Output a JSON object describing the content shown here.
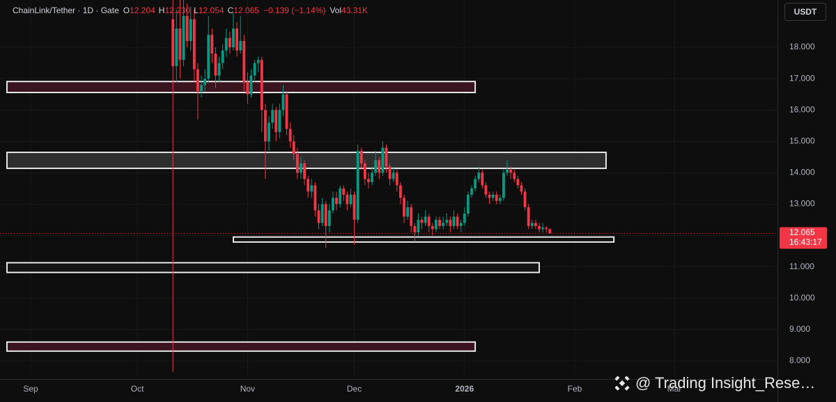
{
  "chart_data": {
    "type": "candlestick",
    "header": [
      {
        "text": "ChainLink/Tether · 1D · Gate",
        "color": "#d1d4dc"
      },
      {
        "text": "O",
        "color": "#d1d4dc"
      },
      {
        "text": "12.204",
        "color": "#f23645"
      },
      {
        "text": "H",
        "color": "#d1d4dc"
      },
      {
        "text": "12.230",
        "color": "#f23645"
      },
      {
        "text": "L",
        "color": "#d1d4dc"
      },
      {
        "text": "12.054",
        "color": "#f23645"
      },
      {
        "text": "C",
        "color": "#d1d4dc"
      },
      {
        "text": "12.065",
        "color": "#f23645"
      },
      {
        "text": "−0.139 (−1.14%)",
        "color": "#f23645"
      },
      {
        "text": "Vol",
        "color": "#d1d4dc"
      },
      {
        "text": "43.31K",
        "color": "#f23645"
      }
    ],
    "currency": "USDT",
    "countdown": "16:43:17",
    "watermark": "@ Trading Insight_Rese…",
    "up_color": "#089981",
    "down_color": "#f23645",
    "grid": true,
    "xlim": [
      -8.62,
      210.0
    ],
    "ylim": [
      7.53,
      19.51
    ],
    "xticks": [
      {
        "value": 0,
        "label": "Sep"
      },
      {
        "value": 30,
        "label": "Oct"
      },
      {
        "value": 61,
        "label": "Nov"
      },
      {
        "value": 91,
        "label": "Dec"
      },
      {
        "value": 122,
        "label": "2026"
      },
      {
        "value": 153,
        "label": "Feb"
      },
      {
        "value": 181,
        "label": "Mar"
      }
    ],
    "yticks": [
      {
        "value": 8,
        "label": "8.000"
      },
      {
        "value": 9,
        "label": "9.000"
      },
      {
        "value": 10,
        "label": "10.000"
      },
      {
        "value": 11,
        "label": "11.000"
      },
      {
        "value": 12,
        "label": "12.000"
      },
      {
        "value": 13,
        "label": "13.000"
      },
      {
        "value": 14,
        "label": "14.000"
      },
      {
        "value": 15,
        "label": "15.000"
      },
      {
        "value": 16,
        "label": "16.000"
      },
      {
        "value": 17,
        "label": "17.000"
      },
      {
        "value": 18,
        "label": "18.000"
      }
    ],
    "zones": [
      {
        "x": [
          -6.66,
          125
        ],
        "y": [
          16.56,
          16.91
        ],
        "color": "#3a1520"
      },
      {
        "x": [
          -6.66,
          161.8
        ],
        "y": [
          14.14,
          14.65
        ],
        "color": "#2e2e2e"
      },
      {
        "x": [
          57.0,
          164.0
        ],
        "y": [
          11.79,
          11.95
        ],
        "color": "#141414"
      },
      {
        "x": [
          -6.66,
          143.0
        ],
        "y": [
          10.82,
          11.13
        ],
        "color": "#141414"
      },
      {
        "x": [
          -6.66,
          125
        ],
        "y": [
          8.31,
          8.6
        ],
        "color": "#3a1520"
      }
    ],
    "x": [
      40,
      41,
      42,
      43,
      44,
      45,
      46,
      47,
      48,
      49,
      50,
      51,
      52,
      53,
      54,
      55,
      56,
      57,
      58,
      59,
      60,
      61,
      62,
      63,
      64,
      65,
      66,
      67,
      68,
      69,
      70,
      71,
      72,
      73,
      74,
      75,
      76,
      77,
      78,
      79,
      80,
      81,
      82,
      83,
      84,
      85,
      86,
      87,
      88,
      89,
      90,
      91,
      92,
      93,
      94,
      95,
      96,
      97,
      98,
      99,
      100,
      101,
      102,
      103,
      104,
      105,
      106,
      107,
      108,
      109,
      110,
      111,
      112,
      113,
      114,
      115,
      116,
      117,
      118,
      119,
      120,
      121,
      122,
      123,
      124,
      125,
      126,
      127,
      128,
      129,
      130,
      131,
      132,
      133,
      134,
      135,
      136,
      137,
      138,
      139,
      140,
      141,
      142,
      143,
      144,
      145,
      146
    ],
    "open": [
      18.9,
      17.4,
      18.6,
      17.6,
      19.0,
      18.2,
      18.9,
      17.3,
      16.6,
      16.8,
      17.0,
      18.4,
      17.8,
      17.1,
      17.5,
      17.9,
      18.3,
      18.0,
      18.6,
      17.9,
      18.2,
      16.9,
      16.5,
      17.1,
      17.5,
      17.6,
      16.0,
      15.0,
      15.6,
      16.0,
      15.3,
      16.0,
      16.5,
      15.4,
      15.0,
      14.6,
      14.0,
      14.3,
      13.8,
      13.4,
      13.6,
      12.8,
      12.4,
      13.0,
      12.3,
      12.8,
      13.2,
      13.0,
      13.5,
      13.3,
      13.0,
      13.3,
      12.5,
      14.7,
      14.3,
      13.8,
      13.7,
      14.0,
      14.4,
      14.0,
      14.8,
      14.2,
      13.8,
      14.0,
      13.6,
      13.2,
      12.6,
      12.9,
      12.3,
      12.1,
      12.5,
      12.4,
      12.6,
      12.3,
      12.2,
      12.5,
      12.3,
      12.4,
      12.5,
      12.3,
      12.6,
      12.3,
      12.4,
      12.7,
      13.3,
      13.5,
      13.8,
      14.0,
      13.6,
      13.3,
      13.2,
      13.3,
      13.1,
      13.2,
      14.0,
      14.1,
      14.0,
      13.8,
      13.6,
      13.4,
      12.9,
      12.3,
      12.4,
      12.3,
      12.2,
      12.25,
      12.204
    ],
    "high": [
      19.6,
      19.2,
      19.7,
      19.8,
      19.4,
      19.3,
      19.2,
      17.5,
      17.1,
      17.3,
      19.0,
      18.6,
      18.0,
      17.7,
      18.1,
      18.6,
      18.5,
      19.1,
      18.8,
      19.0,
      18.4,
      17.2,
      17.3,
      17.6,
      17.7,
      17.7,
      16.2,
      15.8,
      16.2,
      16.1,
      16.2,
      16.8,
      16.6,
      15.6,
      15.2,
      14.8,
      14.5,
      14.4,
      13.9,
      13.8,
      13.7,
      13.0,
      13.2,
      13.1,
      13.0,
      13.4,
      13.4,
      13.6,
      13.6,
      13.4,
      13.5,
      13.4,
      14.9,
      14.8,
      14.4,
      14.0,
      14.2,
      14.7,
      14.5,
      15.0,
      14.9,
      14.3,
      14.2,
      14.1,
      13.7,
      13.3,
      13.1,
      13.0,
      12.4,
      12.7,
      12.6,
      12.8,
      12.7,
      12.4,
      12.6,
      12.6,
      12.6,
      12.7,
      12.6,
      12.8,
      12.7,
      12.5,
      12.9,
      13.4,
      13.6,
      13.9,
      14.2,
      14.1,
      13.7,
      13.4,
      13.4,
      13.4,
      13.3,
      14.1,
      14.4,
      14.2,
      14.1,
      13.9,
      13.7,
      13.5,
      13.0,
      12.5,
      12.5,
      12.4,
      12.4,
      12.3,
      12.23
    ],
    "low": [
      7.65,
      16.9,
      17.0,
      17.4,
      18.0,
      17.9,
      16.9,
      15.7,
      16.4,
      16.6,
      16.9,
      17.5,
      16.7,
      16.9,
      17.3,
      17.7,
      17.8,
      17.9,
      17.7,
      17.8,
      16.6,
      16.2,
      16.4,
      16.9,
      17.2,
      15.3,
      13.8,
      14.7,
      15.4,
      15.0,
      15.1,
      15.8,
      15.2,
      14.8,
      14.4,
      13.8,
      13.8,
      13.6,
      13.2,
      13.2,
      12.6,
      12.2,
      12.3,
      11.6,
      12.1,
      12.7,
      12.8,
      12.9,
      13.1,
      12.8,
      12.9,
      11.7,
      12.4,
      14.1,
      13.6,
      13.5,
      13.6,
      13.9,
      13.8,
      13.9,
      14.0,
      13.6,
      13.7,
      13.4,
      13.0,
      12.4,
      12.5,
      12.1,
      11.8,
      12.0,
      12.2,
      12.3,
      12.1,
      12.0,
      12.1,
      12.2,
      12.2,
      12.3,
      12.1,
      12.2,
      12.2,
      12.1,
      12.3,
      12.6,
      13.2,
      13.4,
      13.7,
      13.5,
      13.2,
      13.0,
      13.1,
      13.0,
      13.0,
      13.1,
      13.9,
      13.8,
      13.7,
      13.5,
      13.3,
      12.8,
      12.2,
      12.2,
      12.2,
      12.1,
      12.1,
      12.1,
      12.054
    ],
    "close": [
      17.4,
      18.6,
      17.6,
      19.0,
      18.2,
      18.9,
      17.3,
      16.6,
      16.8,
      17.0,
      18.4,
      17.8,
      17.1,
      17.5,
      17.9,
      18.3,
      18.0,
      18.6,
      17.9,
      18.2,
      16.9,
      16.5,
      17.1,
      17.5,
      17.6,
      16.0,
      15.0,
      15.6,
      16.0,
      15.3,
      16.0,
      16.5,
      15.4,
      15.0,
      14.6,
      14.0,
      14.3,
      13.8,
      13.4,
      13.6,
      12.8,
      12.4,
      13.0,
      12.3,
      12.8,
      13.2,
      13.0,
      13.5,
      13.3,
      13.0,
      13.3,
      12.5,
      14.7,
      14.3,
      13.8,
      13.7,
      14.0,
      14.4,
      14.0,
      14.8,
      14.2,
      13.8,
      14.0,
      13.6,
      13.2,
      12.6,
      12.9,
      12.3,
      12.1,
      12.5,
      12.4,
      12.6,
      12.3,
      12.2,
      12.5,
      12.3,
      12.4,
      12.5,
      12.3,
      12.6,
      12.3,
      12.4,
      12.7,
      13.3,
      13.5,
      13.8,
      14.0,
      13.6,
      13.3,
      13.2,
      13.3,
      13.1,
      13.2,
      14.0,
      14.1,
      14.0,
      13.8,
      13.6,
      13.4,
      12.9,
      12.3,
      12.4,
      12.3,
      12.2,
      12.25,
      12.204,
      12.065
    ]
  }
}
